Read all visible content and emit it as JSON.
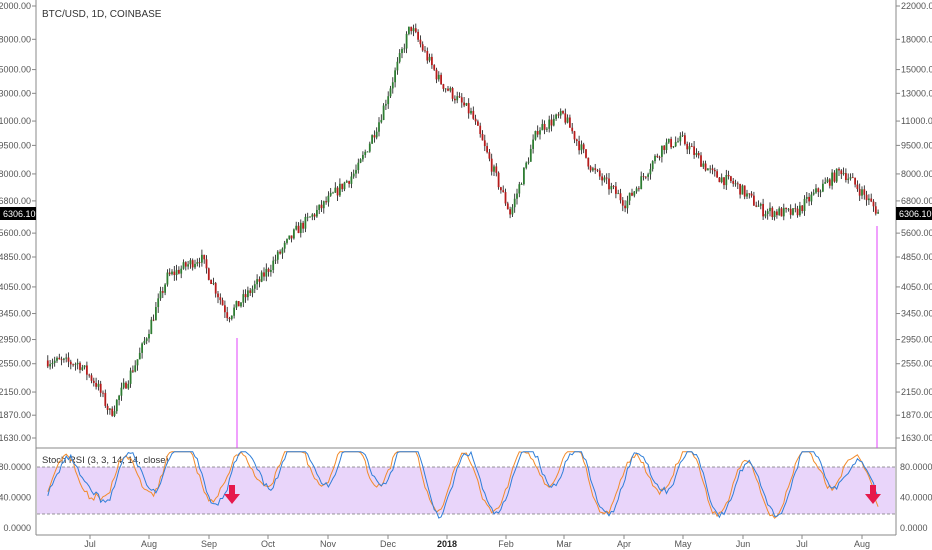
{
  "header": {
    "symbol_title": "BTC/USD, 1D, COINBASE"
  },
  "price_axis": {
    "ticks": [
      1630,
      1870,
      2150,
      2550,
      2950,
      3450,
      4050,
      4850,
      5600,
      6800,
      8000,
      9500,
      11000,
      13000,
      15000,
      18000,
      22000
    ],
    "tick_labels": [
      "1630.00",
      "1870.00",
      "2150.00",
      "2550.00",
      "2950.00",
      "3450.00",
      "4050.00",
      "4850.00",
      "5600.00",
      "6800.00",
      "8000.00",
      "9500.00",
      "11000.00",
      "13000.00",
      "15000.00",
      "18000.00",
      "22000.00"
    ],
    "current_price_label": "6306.10",
    "current_price": 6306.1,
    "scale": "log"
  },
  "indicator": {
    "title": "Stoch RSI (3, 3, 14, 14, close)",
    "tick_labels": [
      "0.0000",
      "40.0000",
      "80.0000"
    ],
    "ticks": [
      0,
      40,
      80
    ],
    "upper_band": 80,
    "lower_band": 20
  },
  "time_axis": {
    "labels": [
      "Jul",
      "Aug",
      "Sep",
      "Oct",
      "Nov",
      "Dec",
      "2018",
      "Feb",
      "Mar",
      "Apr",
      "May",
      "Jun",
      "Jul",
      "Aug"
    ],
    "bold_label": "2018"
  },
  "colors": {
    "up_candle": "#2e7d32",
    "down_candle": "#b71c1c",
    "wick": "#111111",
    "band_fill": "#e9d5fa",
    "k_line": "#2f7ed8",
    "d_line": "#f28b2c",
    "arrow": "#e6194b",
    "marker_line": "#e040fb",
    "price_label_bg": "#000000"
  },
  "annotations": [
    {
      "type": "down-arrow",
      "location": "Sep"
    },
    {
      "type": "down-arrow",
      "location": "Aug"
    }
  ],
  "chart_data": {
    "type": "candlestick",
    "title": "BTC/USD, 1D, COINBASE",
    "y_scale": "log",
    "ylim": [
      1550,
      22000
    ],
    "x": [
      "2017-06-15",
      "2017-07-01",
      "2017-07-10",
      "2017-07-17",
      "2017-08-01",
      "2017-08-15",
      "2017-09-01",
      "2017-09-15",
      "2017-10-01",
      "2017-10-20",
      "2017-11-01",
      "2017-11-20",
      "2017-12-01",
      "2017-12-17",
      "2018-01-01",
      "2018-01-17",
      "2018-02-06",
      "2018-02-20",
      "2018-03-05",
      "2018-03-20",
      "2018-04-06",
      "2018-04-25",
      "2018-05-05",
      "2018-05-20",
      "2018-06-01",
      "2018-06-15",
      "2018-07-01",
      "2018-07-15",
      "2018-07-25",
      "2018-08-05",
      "2018-08-13"
    ],
    "close": [
      2600,
      2550,
      2250,
      1880,
      2700,
      4300,
      4850,
      3400,
      4200,
      5700,
      6500,
      8200,
      11000,
      19500,
      14000,
      11500,
      6300,
      10500,
      11400,
      8200,
      6700,
      9500,
      9800,
      8000,
      7500,
      6400,
      6300,
      7400,
      8200,
      7100,
      6306
    ],
    "stoch_rsi": {
      "k": [
        60,
        10,
        70,
        5,
        55,
        95,
        80,
        5,
        90,
        70,
        95,
        75,
        95,
        90,
        10,
        40,
        5,
        95,
        85,
        10,
        20,
        80,
        60,
        10,
        20,
        5,
        25,
        90,
        80,
        10,
        0
      ],
      "d": [
        55,
        15,
        65,
        10,
        50,
        92,
        78,
        10,
        88,
        72,
        93,
        78,
        93,
        88,
        15,
        38,
        8,
        92,
        86,
        15,
        18,
        78,
        62,
        12,
        18,
        8,
        22,
        88,
        82,
        15,
        2
      ]
    }
  }
}
